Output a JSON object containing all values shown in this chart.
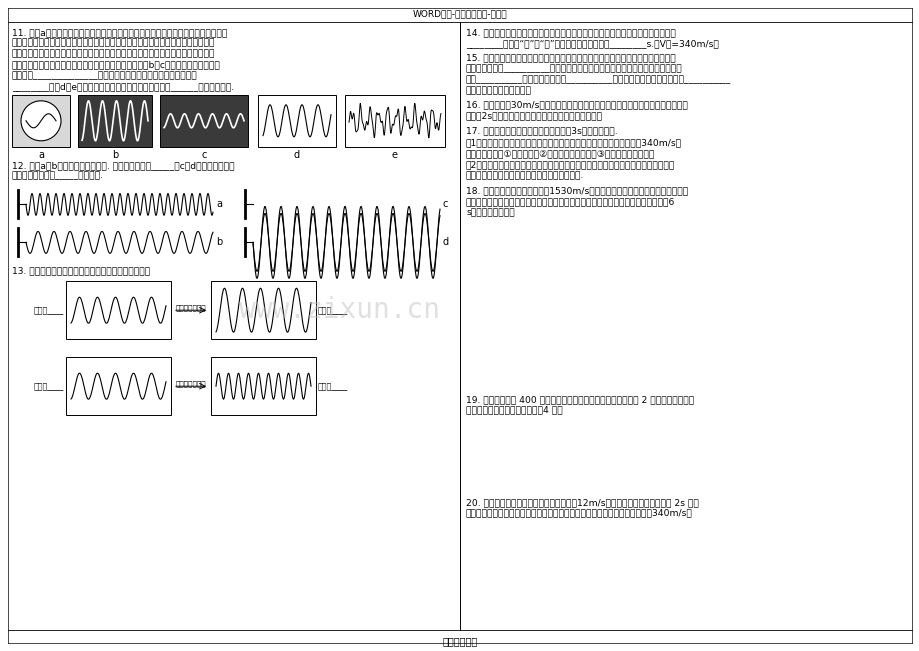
{
  "bg_color": "#ffffff",
  "header_text": "WORD格式-专业学习资料-可编辑",
  "footer_text": "学习资料分享",
  "q11_lines": [
    "11. 如图a所示，伍实同学用示波器（一种可以观察振动波形的仪器）、钓锐条和台钓",
    "研究声音的响度。他将钓锐条的下端夹紧在台钓上，上端用手拨动一下，使钓锐条振",
    "动发声。实验中，他进行了两次实验，第一次锐条发出的声音响，第二次锐条发出的",
    "声音轻，他同时观察到示波器上显示的波形幅度分别如图b、c所示，则他得出的实验",
    "结论是：______________。在完成上述实验时应保持钓锐条的长度",
    "________。囼d、e是两种声音的波形图，从图形可知：图______是乐音的波形."
  ],
  "q12_lines": [
    "12. 如图a、b是两音叉的发声特点. 其中音调高的是_____，c、d是同一音叉两次",
    "的发声特点，其中_____的响度大."
  ],
  "q13_line": "13. 根据图中发声体的振动图像，写出相应的变化情况",
  "q14_lines": [
    "14. 百米赛跑中，若终点计时员听到枪声开始计时，他记录的时间比运动员真实时间",
    "________（选填“多”或“少”），通过计算发现相差________s.（V声=340m/s）"
  ],
  "q15_lines": [
    "15. 在班上的一次元旦晊会上，男生小平放声高唱一首歌，女生小丽为他轻声伴唱，",
    "他们是靠声带的__________产生声音的，由于他们的声带不同，所以他们发出的声",
    "音的__________不同，我们还知道__________（小平、小丽）的响度大，而__________",
    "（小平、小丽）的音调高。"
  ],
  "q16_lines": [
    "16. 一辆火车以30m/s的速度在平直的轨道上驶向一座高山，在山前某处鸣笛，火车",
    "鸣笛后2s司机听到回声，则司机鸣笛时距离上有多远？"
  ],
  "q17_line": "17. 某雷雨天的晚上，玉红同学看到闪电3s后听到了雷声.",
  "q17_1_lines": [
    "（1）请你帮她估算打雷的地方距她多远？（声音在空气中的传播速度以340m/s计",
    "算）。【要求：①写出公式；②有必要的文字说明；③代数据要代单位。】"
  ],
  "q17_2_lines": [
    "（2）实际上，闪疵和雷声是同时产生的。为什么我们总是先看到闪疵后听到雷声呢？",
    "请你利用速度公式分析说明产生这种现象的原因."
  ],
  "q18_lines": [
    "18. 声音在海水中传播的速度约1530m/s，利用声纳可以测量海水的深度，由声纳",
    "的发射器从海面向海底发出超声波，测出从发出超声波到接收到超声波共用的时间为6",
    "s，则海水有多深？"
  ],
  "q19_lines": [
    "19. 汽车距离墙壁 400 米，当它鸣笛后继续向前匀速行驶，经过 2 秒后，听到回声，",
    "求该汽车行驶的速度为多大？（4 分）"
  ],
  "q20_lines": [
    "20. 汽车行驶的正前方有一座高山，汽车以12m/s的速度匀速行驶，汽车鸣笛 2s 后，",
    "司机听到回声，则此时汽车距离高山有多远？（设声音在空气中的传播速度为340m/s）"
  ]
}
